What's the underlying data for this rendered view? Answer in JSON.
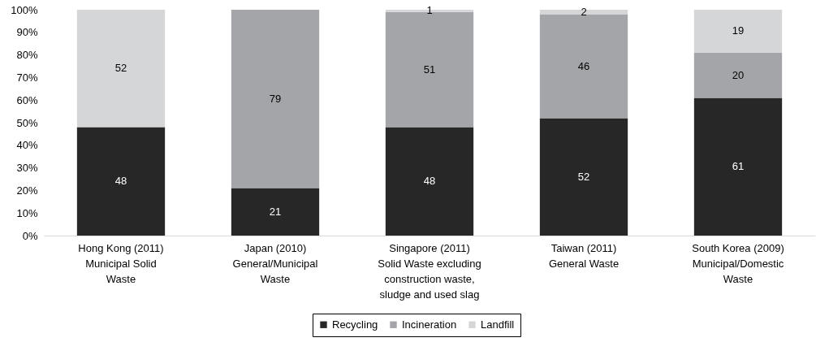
{
  "chart_data": {
    "type": "bar",
    "stacked": true,
    "categories": [
      "Hong Kong (2011)\nMunicipal Solid\nWaste",
      "Japan (2010)\nGeneral/Municipal\nWaste",
      "Singapore (2011)\nSolid Waste excluding\nconstruction waste,\nsludge and used slag",
      "Taiwan (2011)\nGeneral Waste",
      "South Korea (2009)\nMunicipal/Domestic\nWaste"
    ],
    "series": [
      {
        "name": "Recycling",
        "color": "#272727",
        "values": [
          48,
          21,
          48,
          52,
          61
        ]
      },
      {
        "name": "Incineration",
        "color": "#a4a5a8",
        "values": [
          null,
          79,
          51,
          46,
          20
        ]
      },
      {
        "name": "Landfill",
        "color": "#d5d6d8",
        "values": [
          52,
          null,
          1,
          2,
          19
        ]
      }
    ],
    "ylim": [
      0,
      100
    ],
    "yticks": [
      {
        "value": 0,
        "label": "0%"
      },
      {
        "value": 10,
        "label": "10%"
      },
      {
        "value": 20,
        "label": "20%"
      },
      {
        "value": 30,
        "label": "30%"
      },
      {
        "value": 40,
        "label": "40%"
      },
      {
        "value": 50,
        "label": "50%"
      },
      {
        "value": 60,
        "label": "60%"
      },
      {
        "value": 70,
        "label": "70%"
      },
      {
        "value": 80,
        "label": "80%"
      },
      {
        "value": 90,
        "label": "90%"
      },
      {
        "value": 100,
        "label": "100%"
      }
    ],
    "legend": "bottom",
    "data_labels": true
  }
}
